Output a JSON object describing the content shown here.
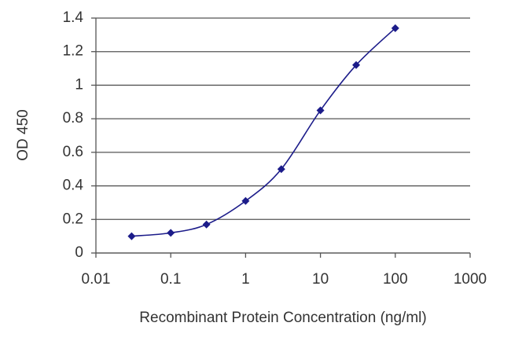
{
  "chart_data": {
    "type": "line",
    "x_label": "Recombinant Protein Concentration (ng/ml)",
    "y_label": "OD 450",
    "xscale": "log",
    "x": [
      0.03,
      0.1,
      0.3,
      1,
      3,
      10,
      30,
      100
    ],
    "series": [
      {
        "color": "#1c1c8a",
        "values": [
          0.1,
          0.12,
          0.17,
          0.31,
          0.5,
          0.85,
          1.12,
          1.34
        ]
      }
    ],
    "xlim": [
      0.01,
      1000
    ],
    "xticks": [
      0.01,
      0.1,
      1,
      10,
      100,
      1000
    ],
    "ylim": [
      0,
      1.4
    ],
    "yticks": [
      0,
      0.2,
      0.4,
      0.6,
      0.8,
      1,
      1.2,
      1.4
    ],
    "grid": true
  }
}
